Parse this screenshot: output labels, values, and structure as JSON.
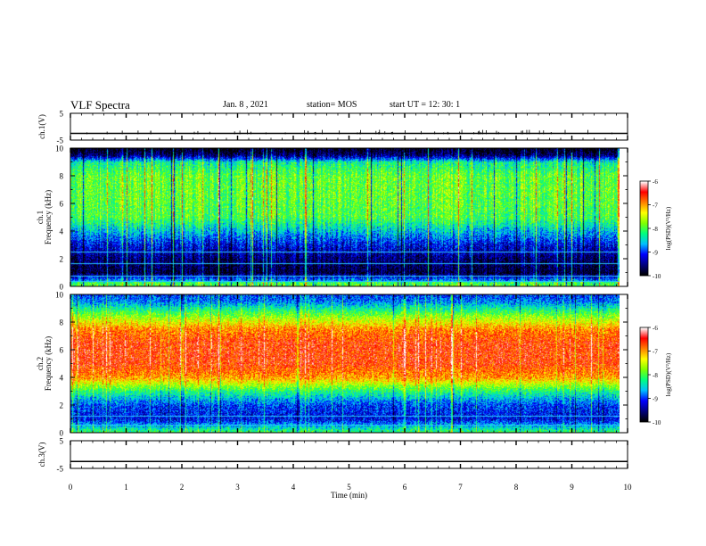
{
  "header": {
    "title": "VLF Spectra",
    "date": "Jan. 8 , 2021",
    "station": "station= MOS",
    "start_ut": "start  UT =   12: 30: 1"
  },
  "chart_data": [
    {
      "type": "line",
      "panel": "ch1-waveform",
      "ylabel": "ch.1(V)",
      "ylim": [
        -5,
        5
      ],
      "y_ticks": [
        "5",
        "-5"
      ],
      "xlim": [
        0,
        10
      ],
      "trace_level": -2.5
    },
    {
      "type": "heatmap",
      "panel": "ch1-spectrogram",
      "ylabel": "ch.1\nFrequency (kHz)",
      "ylim": [
        0,
        10
      ],
      "y_ticks": [
        "0",
        "2",
        "4",
        "6",
        "8",
        "10"
      ],
      "xlim": [
        0,
        10
      ],
      "data_end_min": 9.85,
      "colorbar": {
        "label": "log(PSD)(V²/Hz)",
        "range": [
          -10,
          -6
        ],
        "ticks": [
          "-6",
          "-7",
          "-8",
          "-9",
          "-10"
        ]
      },
      "band_levels_kHz_to_logPSD": [
        [
          0.0,
          -8.5
        ],
        [
          0.5,
          -8.8
        ],
        [
          1.0,
          -9.8
        ],
        [
          2.0,
          -9.6
        ],
        [
          3.0,
          -9.2
        ],
        [
          4.0,
          -8.6
        ],
        [
          5.0,
          -8.0
        ],
        [
          6.5,
          -7.9
        ],
        [
          8.0,
          -7.9
        ],
        [
          9.0,
          -8.3
        ],
        [
          9.5,
          -9.6
        ],
        [
          10.0,
          -10.0
        ]
      ]
    },
    {
      "type": "heatmap",
      "panel": "ch2-spectrogram",
      "ylabel": "ch.2\nFrequency (kHz)",
      "ylim": [
        0,
        10
      ],
      "y_ticks": [
        "0",
        "2",
        "4",
        "6",
        "8",
        "10"
      ],
      "xlim": [
        0,
        10
      ],
      "data_end_min": 9.85,
      "colorbar": {
        "label": "log(PSD)(V²/Hz)",
        "range": [
          -10,
          -6
        ],
        "ticks": [
          "-6",
          "-7",
          "-8",
          "-9",
          "-10"
        ]
      },
      "band_levels_kHz_to_logPSD": [
        [
          0.0,
          -8.0
        ],
        [
          0.5,
          -8.6
        ],
        [
          1.0,
          -9.2
        ],
        [
          2.0,
          -9.0
        ],
        [
          3.0,
          -8.2
        ],
        [
          4.0,
          -7.0
        ],
        [
          5.0,
          -6.6
        ],
        [
          6.5,
          -6.6
        ],
        [
          7.5,
          -6.9
        ],
        [
          8.5,
          -7.8
        ],
        [
          9.5,
          -8.8
        ],
        [
          10.0,
          -9.0
        ]
      ]
    },
    {
      "type": "line",
      "panel": "ch3-waveform",
      "ylabel": "ch.3(V)",
      "ylim": [
        -5,
        5
      ],
      "y_ticks": [
        "5",
        "-5"
      ],
      "xlim": [
        0,
        10
      ],
      "trace_level": -2.5
    }
  ],
  "x_axis": {
    "label": "Time (min)",
    "ticks": [
      "0",
      "1",
      "2",
      "3",
      "4",
      "5",
      "6",
      "7",
      "8",
      "9",
      "10"
    ]
  },
  "colors": {
    "background": "#ffffff",
    "axis": "#000000",
    "colormap": [
      "#000000",
      "#00007f",
      "#0000ff",
      "#00c0ff",
      "#00ff80",
      "#80ff00",
      "#ffff00",
      "#ff8000",
      "#ff0000",
      "#ffffff"
    ]
  }
}
